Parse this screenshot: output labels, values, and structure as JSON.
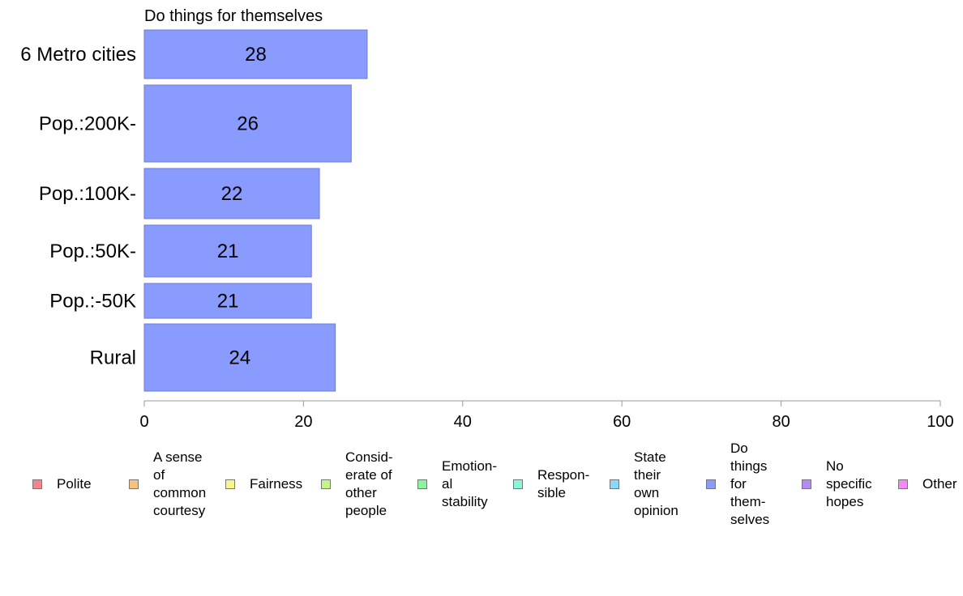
{
  "chart_data": {
    "type": "bar",
    "orientation": "horizontal",
    "title": "Do things for themselves",
    "categories": [
      "6 Metro cities",
      "Pop.:200K-",
      "Pop.:100K-",
      "Pop.:50K-",
      "Pop.:-50K",
      "Rural"
    ],
    "values": [
      28,
      26,
      22,
      21,
      21,
      24
    ],
    "data_labels": [
      "28",
      "26",
      "22",
      "21",
      "21",
      "24"
    ],
    "xlim": [
      0,
      100
    ],
    "x_ticks": [
      "0",
      "20",
      "40",
      "60",
      "80",
      "100"
    ],
    "grid": false,
    "legend_position": "bottom",
    "bar_color": "#8a9bff",
    "legend": [
      {
        "label": "Polite",
        "color": "#f4858a"
      },
      {
        "label": "A sense\nof\ncommon\ncourtesy",
        "color": "#f6c27e"
      },
      {
        "label": "Fairness",
        "color": "#faf58a"
      },
      {
        "label": "Consid-\nerate of\nother\npeople",
        "color": "#c4f58a"
      },
      {
        "label": "Emotion-\nal\nstability",
        "color": "#8af59e"
      },
      {
        "label": "Respon-\nsible",
        "color": "#8af5d9"
      },
      {
        "label": "State\ntheir\nown\nopinion",
        "color": "#8adaf7"
      },
      {
        "label": "Do\nthings\nfor\nthem-\nselves",
        "color": "#8a9bff"
      },
      {
        "label": "No\nspecific\nhopes",
        "color": "#b58af7"
      },
      {
        "label": "Other",
        "color": "#f48af4"
      }
    ]
  }
}
